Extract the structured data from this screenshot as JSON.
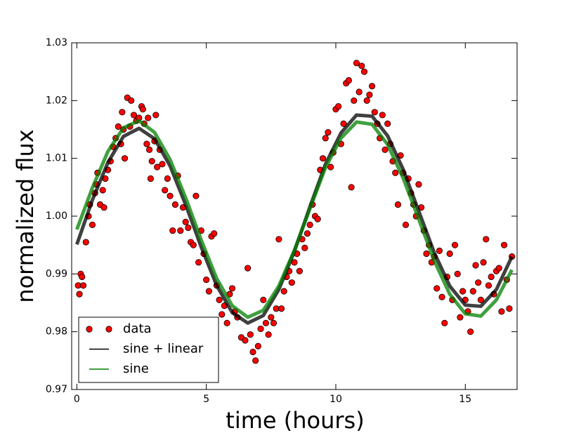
{
  "chart_data": {
    "type": "scatter",
    "xlabel": "time (hours)",
    "ylabel": "normalized flux",
    "xlim": [
      -0.2,
      17
    ],
    "ylim": [
      0.97,
      1.03
    ],
    "xticks": [
      0,
      5,
      10,
      15
    ],
    "yticks": [
      0.97,
      0.98,
      0.99,
      {
        "value": 1.0,
        "label": "1.00"
      },
      1.01,
      1.02,
      1.03
    ],
    "legend": "lower left",
    "series": [
      {
        "name": "data",
        "type": "scatter",
        "color": "#ff0000",
        "x": [
          0.05,
          0.1,
          0.15,
          0.2,
          0.25,
          0.35,
          0.45,
          0.5,
          0.6,
          0.7,
          0.75,
          0.8,
          0.9,
          1.0,
          1.05,
          1.1,
          1.2,
          1.3,
          1.4,
          1.5,
          1.6,
          1.7,
          1.75,
          1.8,
          1.85,
          1.95,
          2.05,
          2.1,
          2.2,
          2.3,
          2.4,
          2.5,
          2.55,
          2.6,
          2.7,
          2.75,
          2.8,
          2.85,
          2.9,
          3.0,
          3.05,
          3.1,
          3.2,
          3.3,
          3.4,
          3.5,
          3.6,
          3.7,
          3.8,
          3.9,
          4.0,
          4.1,
          4.2,
          4.3,
          4.4,
          4.5,
          4.6,
          4.7,
          4.8,
          4.9,
          5.0,
          5.1,
          5.2,
          5.3,
          5.4,
          5.5,
          5.6,
          5.7,
          5.8,
          5.9,
          6.0,
          6.1,
          6.2,
          6.35,
          6.5,
          6.6,
          6.7,
          6.8,
          6.9,
          7.0,
          7.1,
          7.2,
          7.3,
          7.4,
          7.5,
          7.6,
          7.7,
          7.8,
          7.9,
          8.0,
          8.1,
          8.2,
          8.3,
          8.4,
          8.5,
          8.6,
          8.7,
          8.8,
          8.9,
          9.0,
          9.1,
          9.2,
          9.3,
          9.4,
          9.5,
          9.6,
          9.7,
          9.8,
          9.9,
          10.0,
          10.1,
          10.2,
          10.3,
          10.4,
          10.5,
          10.6,
          10.7,
          10.8,
          10.9,
          11.0,
          11.1,
          11.2,
          11.3,
          11.4,
          11.5,
          11.6,
          11.7,
          11.8,
          11.9,
          12.0,
          12.1,
          12.2,
          12.3,
          12.4,
          12.5,
          12.6,
          12.7,
          12.8,
          12.9,
          13.0,
          13.1,
          13.2,
          13.3,
          13.4,
          13.5,
          13.6,
          13.7,
          13.8,
          13.9,
          14.0,
          14.1,
          14.2,
          14.3,
          14.4,
          14.5,
          14.6,
          14.7,
          14.8,
          14.9,
          15.0,
          15.1,
          15.2,
          15.3,
          15.4,
          15.5,
          15.6,
          15.7,
          15.8,
          15.9,
          16.0,
          16.1,
          16.2,
          16.3,
          16.4,
          16.5,
          16.6,
          16.7,
          16.8
        ],
        "values": [
          0.988,
          0.9865,
          0.99,
          0.9895,
          0.988,
          0.9955,
          1.0,
          1.002,
          0.9985,
          1.004,
          1.0055,
          1.0075,
          1.002,
          1.0045,
          1.0015,
          1.0065,
          1.008,
          1.0095,
          1.012,
          1.0135,
          1.0155,
          1.0125,
          1.018,
          1.015,
          1.01,
          1.0205,
          1.0155,
          1.02,
          1.0175,
          1.0165,
          1.017,
          1.019,
          1.0185,
          1.016,
          1.0125,
          1.017,
          1.0115,
          1.0065,
          1.0095,
          1.013,
          1.0175,
          1.0085,
          1.0115,
          1.009,
          1.0045,
          1.0065,
          1.0035,
          0.9975,
          1.002,
          1.007,
          0.9975,
          1.0015,
          0.999,
          0.998,
          0.9955,
          0.995,
          1.0035,
          0.992,
          0.9975,
          0.9935,
          0.989,
          0.987,
          0.9965,
          0.997,
          0.988,
          0.9855,
          0.983,
          0.9845,
          0.9815,
          0.9865,
          0.9875,
          0.9835,
          0.9825,
          0.979,
          0.9785,
          0.991,
          0.9795,
          0.9765,
          0.975,
          0.9775,
          0.9805,
          0.9855,
          0.9815,
          0.9795,
          0.9825,
          0.9815,
          0.984,
          0.996,
          0.984,
          0.987,
          0.9895,
          0.9905,
          0.9885,
          0.992,
          0.9935,
          0.9905,
          0.996,
          0.9945,
          0.997,
          0.9985,
          1.002,
          1.0,
          0.9995,
          1.008,
          1.01,
          1.0135,
          1.0145,
          1.0085,
          1.011,
          1.0185,
          1.019,
          1.0125,
          1.016,
          1.023,
          1.0235,
          1.005,
          1.02,
          1.0265,
          1.0215,
          1.026,
          1.025,
          1.02,
          1.021,
          1.0225,
          1.018,
          1.016,
          1.0135,
          1.0175,
          1.0115,
          1.016,
          1.0125,
          1.0095,
          1.0075,
          1.002,
          1.0105,
          1.0075,
          0.9985,
          1.0065,
          1.004,
          1.002,
          1.0,
          1.0055,
          1.0015,
          0.9975,
          0.9935,
          0.995,
          0.992,
          0.993,
          0.9875,
          0.994,
          0.986,
          0.9815,
          0.9895,
          0.9935,
          0.9855,
          0.995,
          0.99,
          0.9825,
          0.987,
          0.9855,
          0.9835,
          0.98,
          0.987,
          0.9915,
          0.9885,
          0.9855,
          0.992,
          0.996,
          0.988,
          0.9895,
          0.9865,
          0.9905,
          0.991,
          0.9835,
          0.995,
          0.989,
          0.984,
          0.993
        ]
      },
      {
        "name": "sine + linear",
        "type": "line",
        "color": "#000000",
        "x": [
          0,
          0.6,
          1.2,
          1.8,
          2.4,
          3.0,
          3.6,
          4.2,
          4.8,
          5.4,
          6.0,
          6.6,
          7.2,
          7.8,
          8.4,
          9.0,
          9.6,
          10.2,
          10.8,
          11.4,
          12.0,
          12.6,
          13.2,
          13.8,
          14.4,
          15.0,
          15.6,
          16.2,
          16.8
        ],
        "values": [
          0.9951,
          1.0028,
          1.0093,
          1.0138,
          1.0152,
          1.0134,
          1.0087,
          1.002,
          0.9947,
          0.988,
          0.9833,
          0.9815,
          0.9828,
          0.9873,
          0.9939,
          1.0016,
          1.009,
          1.0144,
          1.0175,
          1.0173,
          1.0139,
          1.0081,
          1.0009,
          0.9937,
          0.9879,
          0.9846,
          0.9844,
          0.9873,
          0.993
        ]
      },
      {
        "name": "sine",
        "type": "line",
        "color": "#008000",
        "x": [
          0,
          0.6,
          1.2,
          1.8,
          2.4,
          3.0,
          3.6,
          4.2,
          4.8,
          5.4,
          6.0,
          6.6,
          7.2,
          7.8,
          8.4,
          9.0,
          9.6,
          10.2,
          10.8,
          11.4,
          12.0,
          12.6,
          13.2,
          13.8,
          14.4,
          15.0,
          15.6,
          16.2,
          16.8
        ],
        "values": [
          0.9977,
          1.0049,
          1.0112,
          1.0153,
          1.0165,
          1.0145,
          1.0098,
          1.0032,
          0.9959,
          0.9892,
          0.9845,
          0.9825,
          0.9837,
          0.9879,
          0.9941,
          1.0013,
          1.0084,
          1.0135,
          1.0163,
          1.0159,
          1.0124,
          1.0066,
          0.9995,
          0.9923,
          0.9865,
          0.9831,
          0.9827,
          0.9855,
          0.9907
        ]
      }
    ]
  }
}
